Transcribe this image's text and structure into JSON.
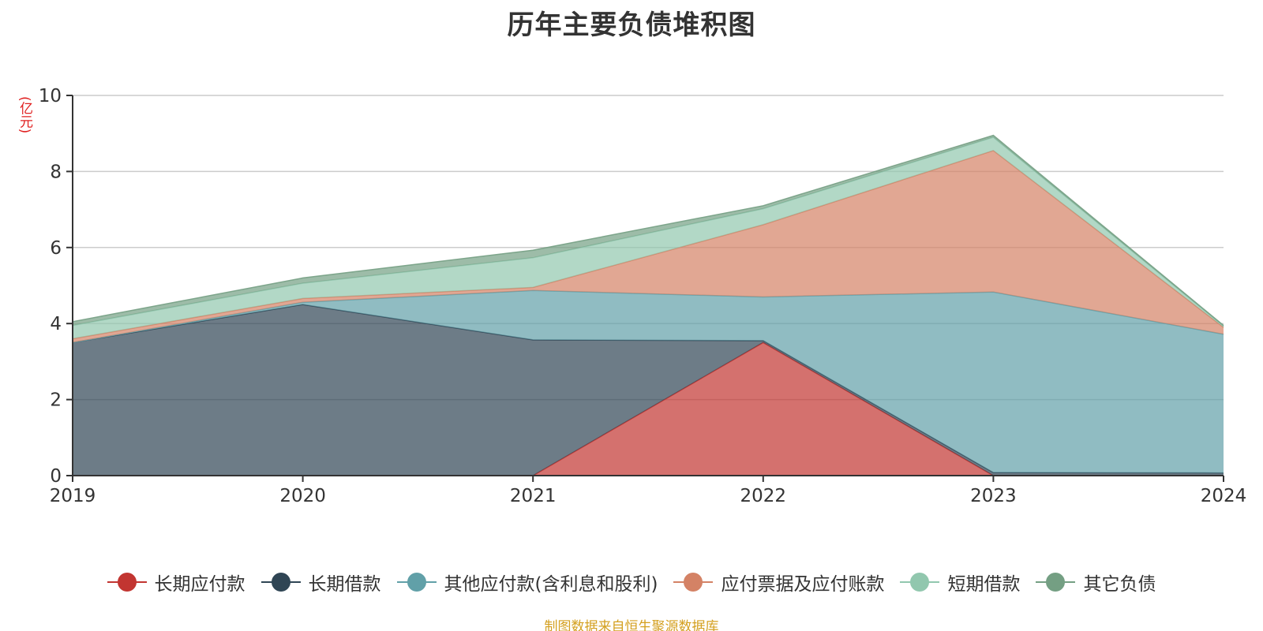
{
  "chart_data": {
    "type": "area",
    "stacked": true,
    "title": "历年主要负债堆积图",
    "y_unit_label": "(亿元)",
    "x": [
      "2019",
      "2020",
      "2021",
      "2022",
      "2023",
      "2024"
    ],
    "ylim": [
      0,
      10
    ],
    "y_ticks": [
      "0",
      "2",
      "4",
      "6",
      "8",
      "10"
    ],
    "grid": true,
    "legend_position": "bottom",
    "series": [
      {
        "name": "长期应付款",
        "color": "#c23531",
        "values": [
          0,
          0,
          0,
          3.5,
          0,
          0
        ]
      },
      {
        "name": "长期借款",
        "color": "#2f4554",
        "values": [
          3.5,
          4.5,
          3.57,
          0.05,
          0.08,
          0.07
        ]
      },
      {
        "name": "其他应付款(含利息和股利)",
        "color": "#61a0a8",
        "values": [
          0,
          0.06,
          1.3,
          1.15,
          4.75,
          3.65
        ]
      },
      {
        "name": "应付票据及应付账款",
        "color": "#d48265",
        "values": [
          0.1,
          0.1,
          0.08,
          1.9,
          3.72,
          0.18
        ]
      },
      {
        "name": "短期借款",
        "color": "#91c7ae",
        "values": [
          0.35,
          0.4,
          0.78,
          0.42,
          0.35,
          0.03
        ]
      },
      {
        "name": "其它负债",
        "color": "#749f83",
        "values": [
          0.1,
          0.14,
          0.2,
          0.08,
          0.05,
          0.02
        ]
      }
    ],
    "source_note": "制图数据来自恒生聚源数据库"
  }
}
